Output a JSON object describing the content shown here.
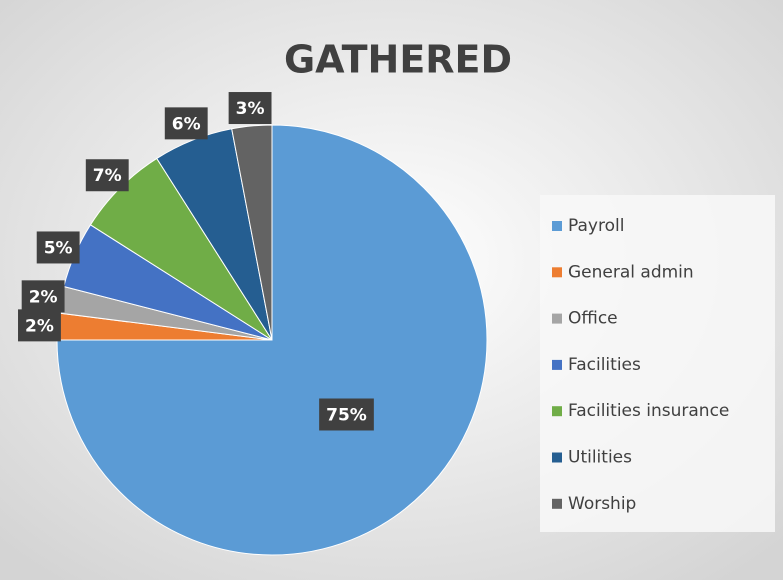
{
  "chart_data": {
    "type": "pie",
    "title": "GATHERED",
    "categories": [
      "Payroll",
      "General admin",
      "Office",
      "Facilities",
      "Facilities insurance",
      "Utilities",
      "Worship"
    ],
    "values": [
      75,
      2,
      2,
      5,
      7,
      6,
      3
    ],
    "value_labels": [
      "75%",
      "2%",
      "2%",
      "5%",
      "7%",
      "6%",
      "3%"
    ],
    "colors": [
      "#5b9bd5",
      "#ed7d31",
      "#a5a5a5",
      "#4472c4",
      "#70ad47",
      "#255e91",
      "#636363"
    ],
    "legend": "right"
  }
}
